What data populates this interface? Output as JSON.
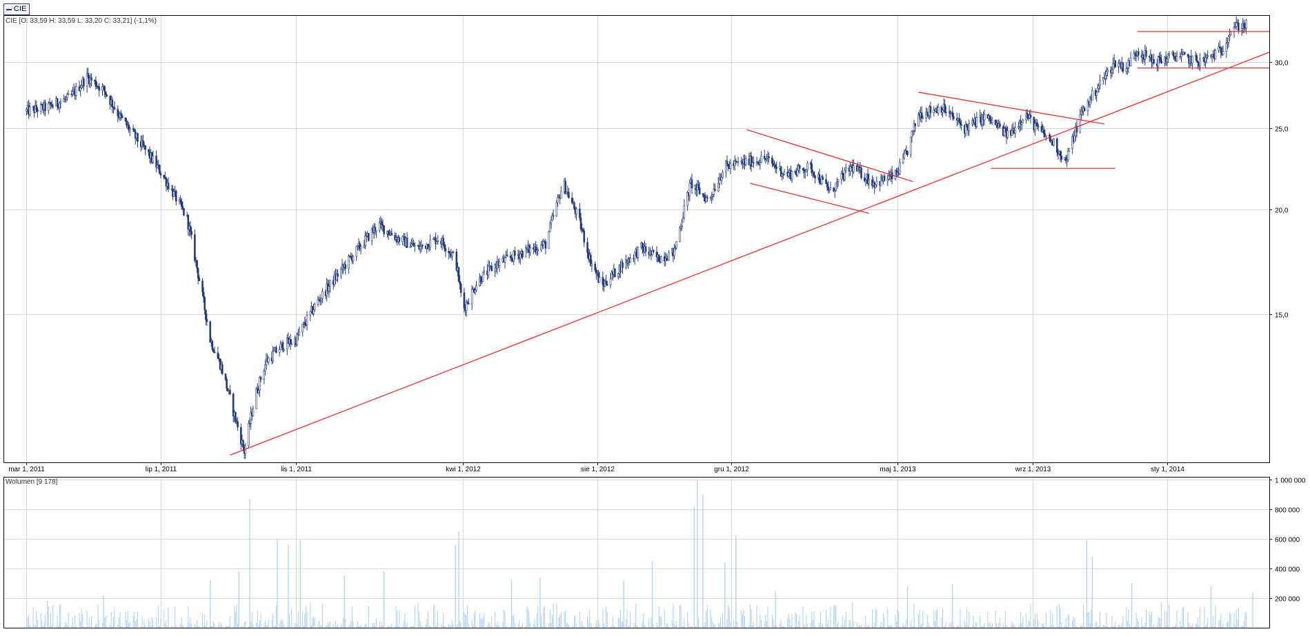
{
  "legend": {
    "series_name": "CIE"
  },
  "price_pane": {
    "info_label": "CIE [O: 33,59  H: 33,59  L: 33,20  C: 33,21] (-1,1%)"
  },
  "volume_pane": {
    "info_label": "Wolumen [9 178]"
  },
  "colors": {
    "candles": "#233b7c",
    "volume_bars": "#a9cff2",
    "trendlines": "#ff1a1a",
    "grid": "#d8d8d8",
    "axis": "#000000"
  },
  "chart_data": [
    {
      "type": "candlestick",
      "title": "",
      "series": [
        {
          "name": "CIE"
        }
      ],
      "x_scale": "time",
      "y_scale": "log",
      "xlim": [
        "2011-02-08",
        "2014-04-04"
      ],
      "ylim": [
        10.0,
        34.1
      ],
      "x_ticks": [
        {
          "date": "2011-03-01",
          "label": "mar 1, 2011"
        },
        {
          "date": "2011-07-01",
          "label": "lip 1, 2011"
        },
        {
          "date": "2011-11-01",
          "label": "lis 1, 2011"
        },
        {
          "date": "2012-04-01",
          "label": "kwi 1, 2012"
        },
        {
          "date": "2012-08-01",
          "label": "sie 1, 2012"
        },
        {
          "date": "2012-12-01",
          "label": "gru 1, 2012"
        },
        {
          "date": "2013-05-01",
          "label": "maj 1, 2013"
        },
        {
          "date": "2013-09-01",
          "label": "wrz 1, 2013"
        },
        {
          "date": "2014-01-01",
          "label": "sty 1, 2014"
        }
      ],
      "y_ticks": [
        {
          "value": 15.0,
          "label": "15,0"
        },
        {
          "value": 20.0,
          "label": "20,0"
        },
        {
          "value": 25.0,
          "label": "25,0"
        },
        {
          "value": 30.0,
          "label": "30,0"
        }
      ],
      "grid": true,
      "path_points": [
        [
          "2011-03-01",
          26.2
        ],
        [
          "2011-03-20",
          26.5
        ],
        [
          "2011-04-10",
          27.2
        ],
        [
          "2011-04-25",
          28.8
        ],
        [
          "2011-05-10",
          27.8
        ],
        [
          "2011-05-25",
          25.8
        ],
        [
          "2011-06-10",
          24.2
        ],
        [
          "2011-06-25",
          22.8
        ],
        [
          "2011-07-10",
          21.2
        ],
        [
          "2011-07-25",
          19.5
        ],
        [
          "2011-08-05",
          16.5
        ],
        [
          "2011-08-15",
          14.0
        ],
        [
          "2011-08-25",
          13.0
        ],
        [
          "2011-09-05",
          11.5
        ],
        [
          "2011-09-15",
          10.3
        ],
        [
          "2011-09-25",
          12.0
        ],
        [
          "2011-10-05",
          13.2
        ],
        [
          "2011-10-20",
          13.8
        ],
        [
          "2011-11-01",
          14.0
        ],
        [
          "2011-11-20",
          15.5
        ],
        [
          "2011-12-10",
          16.8
        ],
        [
          "2011-12-31",
          18.2
        ],
        [
          "2012-01-15",
          19.2
        ],
        [
          "2012-02-01",
          18.5
        ],
        [
          "2012-02-20",
          18.0
        ],
        [
          "2012-03-10",
          18.5
        ],
        [
          "2012-03-25",
          17.5
        ],
        [
          "2012-04-01",
          15.2
        ],
        [
          "2012-04-15",
          16.5
        ],
        [
          "2012-05-01",
          17.2
        ],
        [
          "2012-05-25",
          17.8
        ],
        [
          "2012-06-15",
          18.2
        ],
        [
          "2012-07-01",
          21.5
        ],
        [
          "2012-07-15",
          19.5
        ],
        [
          "2012-07-25",
          17.5
        ],
        [
          "2012-08-05",
          16.2
        ],
        [
          "2012-08-20",
          17.0
        ],
        [
          "2012-09-10",
          18.0
        ],
        [
          "2012-09-25",
          17.5
        ],
        [
          "2012-10-10",
          17.8
        ],
        [
          "2012-10-25",
          21.5
        ],
        [
          "2012-11-10",
          20.5
        ],
        [
          "2012-11-25",
          22.5
        ],
        [
          "2012-12-15",
          22.8
        ],
        [
          "2013-01-01",
          23.0
        ],
        [
          "2013-01-20",
          22.0
        ],
        [
          "2013-02-10",
          22.5
        ],
        [
          "2013-03-01",
          21.0
        ],
        [
          "2013-03-20",
          22.5
        ],
        [
          "2013-04-10",
          21.5
        ],
        [
          "2013-04-30",
          22.0
        ],
        [
          "2013-05-10",
          23.5
        ],
        [
          "2013-05-20",
          26.0
        ],
        [
          "2013-06-10",
          26.5
        ],
        [
          "2013-07-01",
          25.0
        ],
        [
          "2013-07-20",
          25.8
        ],
        [
          "2013-08-10",
          24.5
        ],
        [
          "2013-08-25",
          26.0
        ],
        [
          "2013-09-05",
          25.0
        ],
        [
          "2013-09-20",
          24.0
        ],
        [
          "2013-10-01",
          22.8
        ],
        [
          "2013-10-15",
          26.0
        ],
        [
          "2013-10-30",
          28.0
        ],
        [
          "2013-11-15",
          30.0
        ],
        [
          "2013-11-25",
          29.5
        ],
        [
          "2013-12-05",
          31.0
        ],
        [
          "2013-12-20",
          30.0
        ],
        [
          "2014-01-10",
          30.5
        ],
        [
          "2014-02-01",
          30.0
        ],
        [
          "2014-02-20",
          31.0
        ],
        [
          "2014-03-01",
          33.0
        ],
        [
          "2014-03-15",
          33.2
        ]
      ],
      "trendlines": [
        {
          "from": [
            "2011-09-02",
            10.2
          ],
          "to": [
            "2014-04-04",
            30.8
          ]
        },
        {
          "from": [
            "2012-12-15",
            24.9
          ],
          "to": [
            "2013-05-15",
            21.6
          ]
        },
        {
          "from": [
            "2012-12-18",
            21.5
          ],
          "to": [
            "2013-04-05",
            19.8
          ]
        },
        {
          "from": [
            "2013-05-20",
            27.6
          ],
          "to": [
            "2013-11-05",
            25.3
          ]
        },
        {
          "from": [
            "2013-07-25",
            22.4
          ],
          "to": [
            "2013-11-15",
            22.4
          ]
        },
        {
          "from": [
            "2013-12-05",
            32.6
          ],
          "to": [
            "2014-04-04",
            32.6
          ]
        },
        {
          "from": [
            "2013-12-05",
            29.5
          ],
          "to": [
            "2014-04-04",
            29.5
          ]
        }
      ]
    },
    {
      "type": "bar",
      "title": "",
      "series": [
        {
          "name": "Wolumen"
        }
      ],
      "x_scale": "time",
      "xlim": [
        "2011-02-08",
        "2014-04-04"
      ],
      "ylim": [
        0,
        1000000
      ],
      "y_ticks": [
        {
          "value": 200000,
          "label": "200 000"
        },
        {
          "value": 400000,
          "label": "400 000"
        },
        {
          "value": 600000,
          "label": "600 000"
        },
        {
          "value": 800000,
          "label": "800 000"
        },
        {
          "value": 1000000,
          "label": "1 000 000"
        }
      ],
      "grid": true,
      "peaks": [
        [
          "2011-03-20",
          180000
        ],
        [
          "2011-05-10",
          220000
        ],
        [
          "2011-08-15",
          320000
        ],
        [
          "2011-09-10",
          380000
        ],
        [
          "2011-09-20",
          870000
        ],
        [
          "2011-10-15",
          600000
        ],
        [
          "2011-10-25",
          560000
        ],
        [
          "2011-11-05",
          590000
        ],
        [
          "2011-12-15",
          350000
        ],
        [
          "2012-01-20",
          380000
        ],
        [
          "2012-03-25",
          560000
        ],
        [
          "2012-03-28",
          650000
        ],
        [
          "2012-05-15",
          320000
        ],
        [
          "2012-06-10",
          340000
        ],
        [
          "2012-08-25",
          320000
        ],
        [
          "2012-09-20",
          450000
        ],
        [
          "2012-10-28",
          820000
        ],
        [
          "2012-10-31",
          1000000
        ],
        [
          "2012-11-05",
          900000
        ],
        [
          "2012-11-25",
          440000
        ],
        [
          "2012-12-05",
          620000
        ],
        [
          "2013-01-10",
          250000
        ],
        [
          "2013-05-10",
          280000
        ],
        [
          "2013-06-20",
          290000
        ],
        [
          "2013-10-20",
          590000
        ],
        [
          "2013-10-25",
          480000
        ],
        [
          "2013-11-30",
          300000
        ],
        [
          "2014-02-10",
          280000
        ],
        [
          "2014-03-20",
          240000
        ]
      ]
    }
  ]
}
